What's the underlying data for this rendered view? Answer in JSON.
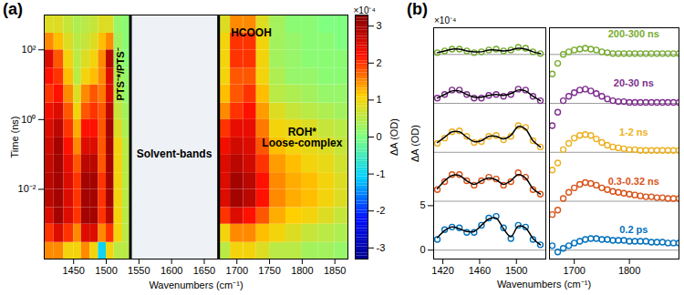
{
  "chart_data": [
    {
      "type": "heatmap",
      "panel_label": "(a)",
      "xlabel": "Wavenumbers (cm⁻¹)",
      "ylabel": "Time (ns)",
      "xlim": [
        1405,
        1870
      ],
      "xticks": [
        1450,
        1500,
        1550,
        1600,
        1650,
        1700,
        1750,
        1800,
        1850
      ],
      "ylim": [
        0.0001,
        1000
      ],
      "log": "y",
      "yticks": [
        {
          "value": 0.01,
          "label": "10⁻²"
        },
        {
          "value": 1,
          "label": "10⁰"
        },
        {
          "value": 100,
          "label": "10²"
        }
      ],
      "x_bins": [
        1405,
        1420,
        1435,
        1450,
        1462,
        1475,
        1488,
        1500,
        1512,
        1525,
        1537,
        1672,
        1690,
        1710,
        1730,
        1750,
        1775,
        1800,
        1825,
        1850,
        1870
      ],
      "y_bins": [
        0.0001,
        0.0003,
        0.001,
        0.003,
        0.01,
        0.03,
        0.1,
        0.3,
        1,
        3,
        10,
        30,
        100,
        300,
        1000
      ],
      "cells": [
        [
          1.5,
          1.5,
          1,
          1,
          1.5,
          1,
          -1,
          1,
          0.5,
          0.5,
          null,
          0.5,
          1,
          1,
          0.8,
          0.5,
          0.5,
          0.3,
          0.3,
          0.2
        ],
        [
          2,
          2.5,
          2,
          1.5,
          2.5,
          2.5,
          1.5,
          2,
          1,
          0.5,
          null,
          1,
          1.5,
          1.5,
          1.2,
          1,
          0.8,
          0.6,
          0.5,
          0.4
        ],
        [
          2.5,
          3,
          2.5,
          2,
          3,
          3,
          2,
          2.8,
          1,
          0.5,
          null,
          2,
          2.5,
          2.2,
          1.8,
          1.3,
          1.1,
          1,
          0.8,
          0.6
        ],
        [
          2.8,
          3,
          2.5,
          2,
          3,
          3,
          2,
          3,
          1,
          0.5,
          null,
          2.5,
          3,
          2.8,
          2.2,
          1.5,
          1.3,
          1.2,
          1,
          0.8
        ],
        [
          2.8,
          3,
          2.5,
          2,
          3,
          3,
          2,
          3,
          1,
          0.5,
          null,
          2.5,
          3,
          2.8,
          2.2,
          1.5,
          1.3,
          1.2,
          1,
          0.8
        ],
        [
          2.7,
          3,
          2.4,
          1.8,
          2.8,
          2.8,
          1.8,
          3,
          1,
          0.5,
          null,
          2.5,
          2.8,
          2.6,
          2,
          1.4,
          1.2,
          1,
          0.9,
          0.7
        ],
        [
          2.6,
          3,
          2.2,
          1.5,
          2.5,
          2.5,
          1.8,
          3,
          1,
          0.5,
          null,
          2.3,
          2.6,
          2.5,
          1.8,
          1.2,
          1,
          0.9,
          0.8,
          0.6
        ],
        [
          2.5,
          2.8,
          2,
          1.3,
          2.2,
          2.2,
          1.8,
          3,
          0.8,
          0.4,
          null,
          2,
          2.4,
          2.4,
          1.6,
          1,
          0.9,
          0.8,
          0.6,
          0.5
        ],
        [
          2.3,
          2.5,
          1.8,
          1,
          1.8,
          2,
          1.8,
          2.8,
          0.6,
          0.3,
          null,
          1.5,
          2,
          2.2,
          1.4,
          0.8,
          0.6,
          0.5,
          0.4,
          0.3
        ],
        [
          2,
          2.2,
          1.5,
          0.8,
          1.5,
          1.8,
          1.6,
          2.5,
          0.5,
          0.2,
          null,
          1.2,
          1.8,
          2,
          1.2,
          0.5,
          0.4,
          0.3,
          0.2,
          0.2
        ],
        [
          2.2,
          2,
          1.2,
          0.5,
          1,
          1.2,
          1.5,
          2.5,
          0.4,
          0.2,
          null,
          1,
          1.8,
          1.8,
          1,
          0.4,
          0.2,
          0.2,
          0.1,
          0.1
        ],
        [
          2.5,
          1.8,
          1,
          0.5,
          0.8,
          1,
          1.5,
          2.8,
          0.3,
          0.1,
          null,
          1,
          2,
          2,
          1,
          0.3,
          0.2,
          0.1,
          0.1,
          0.1
        ],
        [
          1.5,
          1.2,
          0.8,
          0.5,
          0.6,
          0.8,
          1.2,
          1.5,
          0.3,
          0.1,
          null,
          1,
          2,
          2,
          1,
          0.3,
          0.2,
          0.1,
          0.1,
          0
        ],
        [
          0.8,
          0.8,
          0.6,
          0.4,
          0.5,
          0.6,
          0.8,
          0.8,
          0.2,
          0.1,
          null,
          0.8,
          1.5,
          1.5,
          0.8,
          0.3,
          0.1,
          0.1,
          0,
          0
        ]
      ],
      "solvent_band": [
        1537,
        1672
      ],
      "annotations": [
        {
          "text": "PTS⁻*/PTS⁻",
          "x": 1522,
          "y": 20
        },
        {
          "text": "Solvent-bands",
          "x": 1604,
          "y": 0.1
        },
        {
          "text": "HCOOH",
          "x": 1722,
          "y": 300
        },
        {
          "text": "ROH*\nLoose-complex",
          "x": 1800,
          "y": 0.3
        }
      ],
      "colorbar": {
        "label": "ΔA (OD)",
        "multiplier": "×10⁻⁴",
        "range": [
          -3.3,
          3.3
        ],
        "ticks": [
          -3,
          -2,
          -1,
          0,
          1,
          2,
          3
        ]
      }
    },
    {
      "type": "scatter",
      "panel_label": "(b)",
      "xlabel": "Wavenumbers (cm⁻¹)",
      "ylabel": "ΔA (OD)",
      "y_multiplier": "×10⁻⁴",
      "ylim": [
        -1,
        25
      ],
      "yticks": [
        0,
        5
      ],
      "marker": "circle",
      "panels": [
        {
          "xlim": [
            1410,
            1532
          ],
          "xticks": [
            1420,
            1460,
            1500
          ],
          "x": [
            1414,
            1422,
            1430,
            1438,
            1446,
            1454,
            1462,
            1470,
            1478,
            1486,
            1494,
            1502,
            1510,
            1518,
            1526
          ]
        },
        {
          "xlim": [
            1655,
            1890
          ],
          "xticks": [
            1700,
            1800
          ],
          "x": [
            1660,
            1670,
            1680,
            1690,
            1700,
            1710,
            1720,
            1730,
            1740,
            1750,
            1760,
            1770,
            1780,
            1790,
            1800,
            1810,
            1820,
            1830,
            1840,
            1850,
            1860,
            1870,
            1880,
            1890
          ]
        }
      ],
      "series": [
        {
          "name": "0.2 ps",
          "color": "#0072bd",
          "offset": 0,
          "values": [
            [
              1.2,
              2.3,
              2.6,
              2.5,
              2.0,
              2.0,
              2.8,
              3.6,
              3.8,
              2.5,
              1.3,
              2.8,
              2.6,
              1.2,
              0.6
            ],
            [
              0.5,
              -0.2,
              0.2,
              0.5,
              0.8,
              1.0,
              1.2,
              1.3,
              1.3,
              1.2,
              1.2,
              1.1,
              1.1,
              1.1,
              1.0,
              1.0,
              1.0,
              1.0,
              0.9,
              0.9,
              0.9,
              0.8,
              0.8,
              0.8
            ]
          ],
          "fit": [
            [
              1.4,
              2.2,
              2.6,
              2.4,
              2.1,
              2.1,
              2.8,
              3.5,
              3.6,
              2.4,
              1.5,
              2.7,
              2.5,
              1.3,
              0.6
            ],
            null
          ]
        },
        {
          "name": "0.3-0.32 ns",
          "color": "#d95319",
          "offset": 5.5,
          "values": [
            [
              1.3,
              2.2,
              3.0,
              3.0,
              2.3,
              1.8,
              2.3,
              2.7,
              2.5,
              1.8,
              2.2,
              3.2,
              2.7,
              1.3,
              0.8
            ],
            [
              -1.5,
              -1.0,
              0.3,
              1.0,
              1.5,
              1.9,
              2.1,
              2.0,
              1.8,
              1.5,
              1.3,
              1.1,
              1.0,
              0.9,
              0.8,
              0.7,
              0.6,
              0.5,
              0.5,
              0.4,
              0.4,
              0.3,
              0.3,
              0.3
            ]
          ],
          "fit": [
            [
              1.4,
              2.3,
              2.9,
              2.9,
              2.3,
              1.9,
              2.3,
              2.6,
              2.4,
              1.9,
              2.3,
              3.0,
              2.6,
              1.4,
              0.8
            ],
            null
          ]
        },
        {
          "name": "1-2 ns",
          "color": "#edb120",
          "offset": 11,
          "values": [
            [
              1.0,
              1.6,
              2.3,
              2.4,
              1.8,
              1.1,
              1.2,
              1.8,
              1.9,
              1.4,
              1.8,
              3.0,
              2.8,
              1.3,
              0.6
            ],
            [
              -2.0,
              -1.2,
              0.3,
              1.0,
              1.6,
              1.9,
              2.0,
              1.9,
              1.5,
              1.1,
              0.8,
              0.6,
              0.5,
              0.4,
              0.3,
              0.3,
              0.2,
              0.2,
              0.2,
              0.2,
              0.2,
              0.2,
              0.2,
              0.2
            ]
          ],
          "fit": [
            [
              1.1,
              1.7,
              2.3,
              2.3,
              1.7,
              1.2,
              1.3,
              1.8,
              1.8,
              1.5,
              1.9,
              2.9,
              2.6,
              1.3,
              0.6
            ],
            null
          ]
        },
        {
          "name": "20-30 ns",
          "color": "#7e2f8e",
          "offset": 16.5,
          "values": [
            [
              0.6,
              1.0,
              1.5,
              1.5,
              1.0,
              0.6,
              0.6,
              0.9,
              1.0,
              0.8,
              1.0,
              1.6,
              1.5,
              0.8,
              0.3
            ],
            [
              -2.5,
              -1.0,
              0.3,
              0.8,
              1.2,
              1.5,
              1.6,
              1.4,
              1.1,
              0.8,
              0.5,
              0.3,
              0.2,
              0.2,
              0.1,
              0.1,
              0.1,
              0.1,
              0.1,
              0.1,
              0.1,
              0.1,
              0.1,
              0.1
            ]
          ],
          "fit": [
            [
              0.6,
              1.0,
              1.4,
              1.4,
              1.0,
              0.7,
              0.7,
              0.9,
              1.0,
              0.9,
              1.1,
              1.5,
              1.4,
              0.8,
              0.3
            ],
            null
          ]
        },
        {
          "name": "200-300 ns",
          "color": "#77ac30",
          "offset": 22,
          "values": [
            [
              0.2,
              0.4,
              0.6,
              0.6,
              0.4,
              0.2,
              0.3,
              0.5,
              0.6,
              0.4,
              0.5,
              0.8,
              0.7,
              0.3,
              0.1
            ],
            [
              -2.2,
              -1.0,
              0.0,
              0.3,
              0.5,
              0.6,
              0.7,
              0.6,
              0.5,
              0.3,
              0.2,
              0.1,
              0.1,
              0.1,
              0.1,
              0.1,
              0.1,
              0.1,
              0.1,
              0.1,
              0.1,
              0.1,
              0.1,
              0.1
            ]
          ],
          "fit": [
            [
              0.2,
              0.4,
              0.6,
              0.6,
              0.4,
              0.3,
              0.3,
              0.5,
              0.5,
              0.4,
              0.5,
              0.7,
              0.6,
              0.3,
              0.1
            ],
            null
          ]
        }
      ]
    }
  ]
}
